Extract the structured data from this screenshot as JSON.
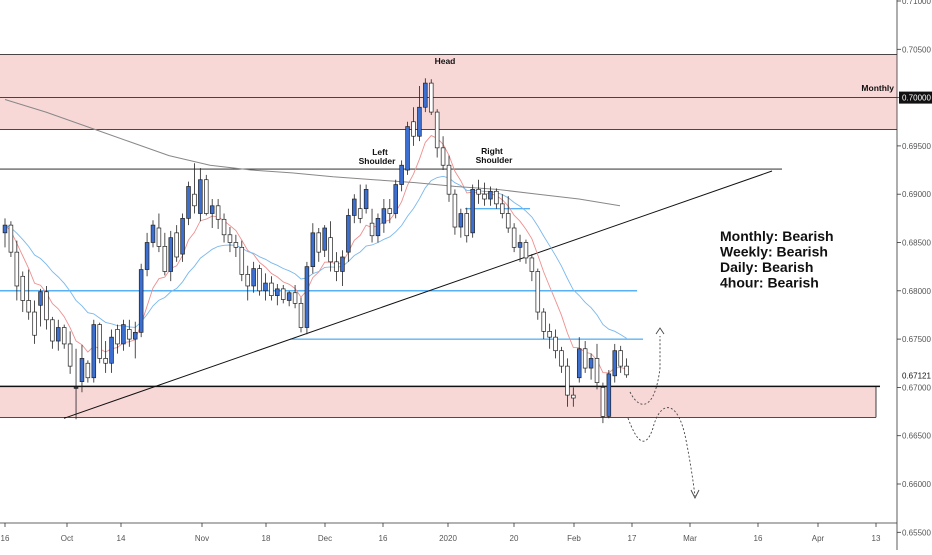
{
  "chart_data": {
    "type": "candlestick",
    "y_axis_ticks": [
      "0.71000",
      "0.70500",
      "0.70000",
      "0.69500",
      "0.69000",
      "0.68500",
      "0.68000",
      "0.67500",
      "0.67000",
      "0.66500",
      "0.66000",
      "0.65500"
    ],
    "x_axis_ticks": [
      "16",
      "Oct",
      "14",
      "Nov",
      "18",
      "Dec",
      "16",
      "2020",
      "20",
      "Feb",
      "17",
      "Mar",
      "16",
      "Apr",
      "13"
    ],
    "ylim": [
      0.6535,
      0.7115
    ],
    "price_labels": [
      {
        "text": "0.70000",
        "value": 0.7,
        "style": "boxed"
      },
      {
        "text": "0.67121",
        "value": 0.67121,
        "style": "plain"
      }
    ],
    "annotations": {
      "monthly": "Monthly",
      "head": "Head",
      "left_shoulder_1": "Left",
      "left_shoulder_2": "Shoulder",
      "right_shoulder_1": "Right",
      "right_shoulder_2": "Shoulder"
    },
    "bias": [
      "Monthly: Bearish",
      "Weekly: Bearish",
      "Daily: Bearish",
      "4hour: Bearish"
    ],
    "zones": [
      {
        "name": "upper-resistance-zone",
        "from": 0.6967,
        "to": 0.7045,
        "color": "#f8d7d7"
      },
      {
        "name": "lower-support-zone",
        "from": 0.6669,
        "to": 0.6701,
        "color": "#f8d7d7"
      }
    ],
    "candles": [
      [
        0.686,
        0.6875,
        0.6845,
        0.6868
      ],
      [
        0.6868,
        0.6872,
        0.6835,
        0.684
      ],
      [
        0.684,
        0.6852,
        0.679,
        0.6805
      ],
      [
        0.6815,
        0.682,
        0.6778,
        0.679
      ],
      [
        0.679,
        0.6822,
        0.677,
        0.6778
      ],
      [
        0.6778,
        0.679,
        0.6745,
        0.6754
      ],
      [
        0.6785,
        0.6802,
        0.6763,
        0.6799
      ],
      [
        0.6799,
        0.6805,
        0.676,
        0.677
      ],
      [
        0.677,
        0.6773,
        0.674,
        0.6748
      ],
      [
        0.6748,
        0.677,
        0.6738,
        0.6762
      ],
      [
        0.6762,
        0.6765,
        0.674,
        0.6745
      ],
      [
        0.6745,
        0.6758,
        0.6714,
        0.6722
      ],
      [
        0.67,
        0.674,
        0.6667,
        0.67
      ],
      [
        0.6706,
        0.6744,
        0.6695,
        0.673
      ],
      [
        0.6725,
        0.6728,
        0.6705,
        0.671
      ],
      [
        0.671,
        0.677,
        0.6705,
        0.6765
      ],
      [
        0.6765,
        0.6767,
        0.6725,
        0.673
      ],
      [
        0.673,
        0.6748,
        0.6715,
        0.6725
      ],
      [
        0.6725,
        0.676,
        0.6715,
        0.6752
      ],
      [
        0.676,
        0.6765,
        0.6735,
        0.6745
      ],
      [
        0.6745,
        0.677,
        0.6738,
        0.6765
      ],
      [
        0.676,
        0.677,
        0.6742,
        0.675
      ],
      [
        0.675,
        0.6768,
        0.673,
        0.6757
      ],
      [
        0.6757,
        0.6828,
        0.6752,
        0.6822
      ],
      [
        0.6822,
        0.686,
        0.6815,
        0.685
      ],
      [
        0.685,
        0.6873,
        0.6845,
        0.6868
      ],
      [
        0.6865,
        0.688,
        0.684,
        0.6846
      ],
      [
        0.6846,
        0.686,
        0.6816,
        0.682
      ],
      [
        0.682,
        0.6862,
        0.681,
        0.6855
      ],
      [
        0.686,
        0.6868,
        0.683,
        0.6835
      ],
      [
        0.6838,
        0.688,
        0.683,
        0.6875
      ],
      [
        0.6875,
        0.6913,
        0.6868,
        0.6908
      ],
      [
        0.69,
        0.6932,
        0.688,
        0.6888
      ],
      [
        0.688,
        0.6927,
        0.6872,
        0.6915
      ],
      [
        0.6915,
        0.692,
        0.6878,
        0.688
      ],
      [
        0.688,
        0.6895,
        0.6865,
        0.6888
      ],
      [
        0.6888,
        0.6895,
        0.6864,
        0.6874
      ],
      [
        0.6874,
        0.688,
        0.685,
        0.6858
      ],
      [
        0.6858,
        0.6866,
        0.684,
        0.685
      ],
      [
        0.685,
        0.6858,
        0.6835,
        0.6845
      ],
      [
        0.6845,
        0.6852,
        0.681,
        0.6817
      ],
      [
        0.6817,
        0.6826,
        0.679,
        0.6805
      ],
      [
        0.6805,
        0.683,
        0.6798,
        0.6823
      ],
      [
        0.6823,
        0.6827,
        0.6795,
        0.68
      ],
      [
        0.68,
        0.6818,
        0.679,
        0.6808
      ],
      [
        0.6808,
        0.6815,
        0.679,
        0.6795
      ],
      [
        0.6795,
        0.6807,
        0.6785,
        0.6802
      ],
      [
        0.6802,
        0.6806,
        0.6787,
        0.6791
      ],
      [
        0.679,
        0.68,
        0.6784,
        0.6798
      ],
      [
        0.6798,
        0.6806,
        0.6782,
        0.6787
      ],
      [
        0.6787,
        0.6793,
        0.6757,
        0.6762
      ],
      [
        0.6762,
        0.683,
        0.6755,
        0.6825
      ],
      [
        0.6825,
        0.687,
        0.6818,
        0.686
      ],
      [
        0.686,
        0.6865,
        0.683,
        0.684
      ],
      [
        0.6842,
        0.6868,
        0.6835,
        0.6865
      ],
      [
        0.6855,
        0.6872,
        0.682,
        0.683
      ],
      [
        0.683,
        0.684,
        0.681,
        0.682
      ],
      [
        0.682,
        0.6842,
        0.6805,
        0.6835
      ],
      [
        0.684,
        0.6885,
        0.683,
        0.6878
      ],
      [
        0.6878,
        0.69,
        0.687,
        0.6895
      ],
      [
        0.6885,
        0.691,
        0.687,
        0.6875
      ],
      [
        0.6885,
        0.691,
        0.688,
        0.6905
      ],
      [
        0.687,
        0.6885,
        0.685,
        0.6857
      ],
      [
        0.6857,
        0.688,
        0.685,
        0.6875
      ],
      [
        0.687,
        0.6895,
        0.686,
        0.6885
      ],
      [
        0.6885,
        0.6895,
        0.687,
        0.688
      ],
      [
        0.688,
        0.6915,
        0.6875,
        0.691
      ],
      [
        0.691,
        0.6935,
        0.6903,
        0.693
      ],
      [
        0.6925,
        0.6975,
        0.692,
        0.697
      ],
      [
        0.6975,
        0.699,
        0.695,
        0.696
      ],
      [
        0.696,
        0.7012,
        0.6955,
        0.699
      ],
      [
        0.699,
        0.702,
        0.6985,
        0.7015
      ],
      [
        0.7015,
        0.7019,
        0.6982,
        0.6985
      ],
      [
        0.6985,
        0.6988,
        0.6938,
        0.6948
      ],
      [
        0.6948,
        0.696,
        0.6925,
        0.693
      ],
      [
        0.693,
        0.694,
        0.6892,
        0.69
      ],
      [
        0.69,
        0.6905,
        0.6858,
        0.6866
      ],
      [
        0.6866,
        0.6885,
        0.6855,
        0.688
      ],
      [
        0.688,
        0.6886,
        0.685,
        0.6857
      ],
      [
        0.686,
        0.691,
        0.6855,
        0.6905
      ],
      [
        0.6905,
        0.6915,
        0.689,
        0.69
      ],
      [
        0.69,
        0.6912,
        0.6888,
        0.6895
      ],
      [
        0.6895,
        0.6908,
        0.6888,
        0.6903
      ],
      [
        0.6903,
        0.6906,
        0.6885,
        0.689
      ],
      [
        0.689,
        0.69,
        0.6875,
        0.688
      ],
      [
        0.688,
        0.6898,
        0.686,
        0.6865
      ],
      [
        0.6865,
        0.687,
        0.684,
        0.6845
      ],
      [
        0.6845,
        0.6858,
        0.683,
        0.685
      ],
      [
        0.685,
        0.6853,
        0.6828,
        0.6834
      ],
      [
        0.6834,
        0.6838,
        0.681,
        0.682
      ],
      [
        0.682,
        0.6823,
        0.677,
        0.6778
      ],
      [
        0.6778,
        0.6782,
        0.675,
        0.6758
      ],
      [
        0.6758,
        0.6766,
        0.674,
        0.6752
      ],
      [
        0.6752,
        0.676,
        0.673,
        0.6738
      ],
      [
        0.6738,
        0.6742,
        0.6715,
        0.6722
      ],
      [
        0.6722,
        0.673,
        0.668,
        0.6692
      ],
      [
        0.6692,
        0.67,
        0.668,
        0.6689
      ],
      [
        0.671,
        0.6752,
        0.6705,
        0.674
      ],
      [
        0.674,
        0.6748,
        0.6715,
        0.672
      ],
      [
        0.672,
        0.6735,
        0.6708,
        0.673
      ],
      [
        0.673,
        0.6745,
        0.6698,
        0.6705
      ],
      [
        0.67,
        0.6705,
        0.6663,
        0.667
      ],
      [
        0.667,
        0.6718,
        0.6668,
        0.6714
      ],
      [
        0.6712,
        0.6745,
        0.6705,
        0.6738
      ],
      [
        0.6738,
        0.6743,
        0.6715,
        0.6722
      ],
      [
        0.6722,
        0.673,
        0.671,
        0.6713
      ]
    ]
  }
}
